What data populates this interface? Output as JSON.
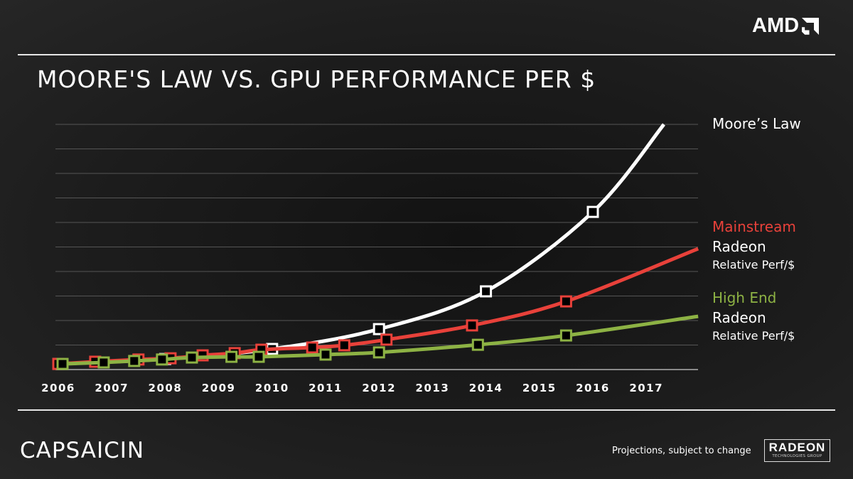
{
  "header": {
    "logo_text": "AMD",
    "title": "MOORE'S LAW VS. GPU PERFORMANCE PER $"
  },
  "chart_data": {
    "type": "line",
    "title": "MOORE'S LAW VS. GPU PERFORMANCE PER $",
    "xlabel": "",
    "ylabel": "Relative Perf/$",
    "x_ticks": [
      "2006",
      "2007",
      "2008",
      "2009",
      "2010",
      "2011",
      "2012",
      "2013",
      "2014",
      "2015",
      "2016",
      "2017"
    ],
    "xlim": [
      2006,
      2018
    ],
    "ylim": [
      0,
      10
    ],
    "grid": true,
    "series": [
      {
        "name": "Moore's Law",
        "color": "#ffffff",
        "markers": [
          [
            2006,
            0.23
          ],
          [
            2008,
            0.43
          ],
          [
            2010,
            0.84
          ],
          [
            2012,
            1.65
          ],
          [
            2014,
            3.19
          ],
          [
            2016,
            6.43
          ]
        ],
        "line_end": [
          2017.33,
          10
        ]
      },
      {
        "name": "Mainstream Radeon Relative Perf/$",
        "color": "#e8413a",
        "markers": [
          [
            2006,
            0.23
          ],
          [
            2006.69,
            0.32
          ],
          [
            2007.5,
            0.41
          ],
          [
            2008.1,
            0.46
          ],
          [
            2008.7,
            0.58
          ],
          [
            2009.3,
            0.67
          ],
          [
            2009.8,
            0.81
          ],
          [
            2010.75,
            0.9
          ],
          [
            2011.35,
            0.99
          ],
          [
            2012.14,
            1.22
          ],
          [
            2013.74,
            1.8
          ],
          [
            2015.5,
            2.78
          ]
        ],
        "line_end": [
          2017.97,
          4.93
        ]
      },
      {
        "name": "High End Radeon Relative Perf/$",
        "color": "#8db244",
        "markers": [
          [
            2006.08,
            0.23
          ],
          [
            2006.85,
            0.29
          ],
          [
            2007.42,
            0.35
          ],
          [
            2007.94,
            0.41
          ],
          [
            2008.5,
            0.49
          ],
          [
            2009.24,
            0.52
          ],
          [
            2009.75,
            0.52
          ],
          [
            2011.0,
            0.61
          ],
          [
            2012.0,
            0.7
          ],
          [
            2013.85,
            1.01
          ],
          [
            2015.5,
            1.39
          ]
        ],
        "line_end": [
          2017.97,
          2.17
        ]
      }
    ],
    "legend": [
      {
        "line1": "Moore’s Law"
      },
      {
        "line1": "Mainstream",
        "line2": "Radeon",
        "line3": "Relative Perf/$"
      },
      {
        "line1": "High End",
        "line2": "Radeon",
        "line3": "Relative Perf/$"
      }
    ]
  },
  "footer": {
    "brand": "CAPSAICIN",
    "disclaimer": "Projections, subject to change",
    "radeon_logo": "RADEON",
    "radeon_sub": "TECHNOLOGIES GROUP"
  }
}
